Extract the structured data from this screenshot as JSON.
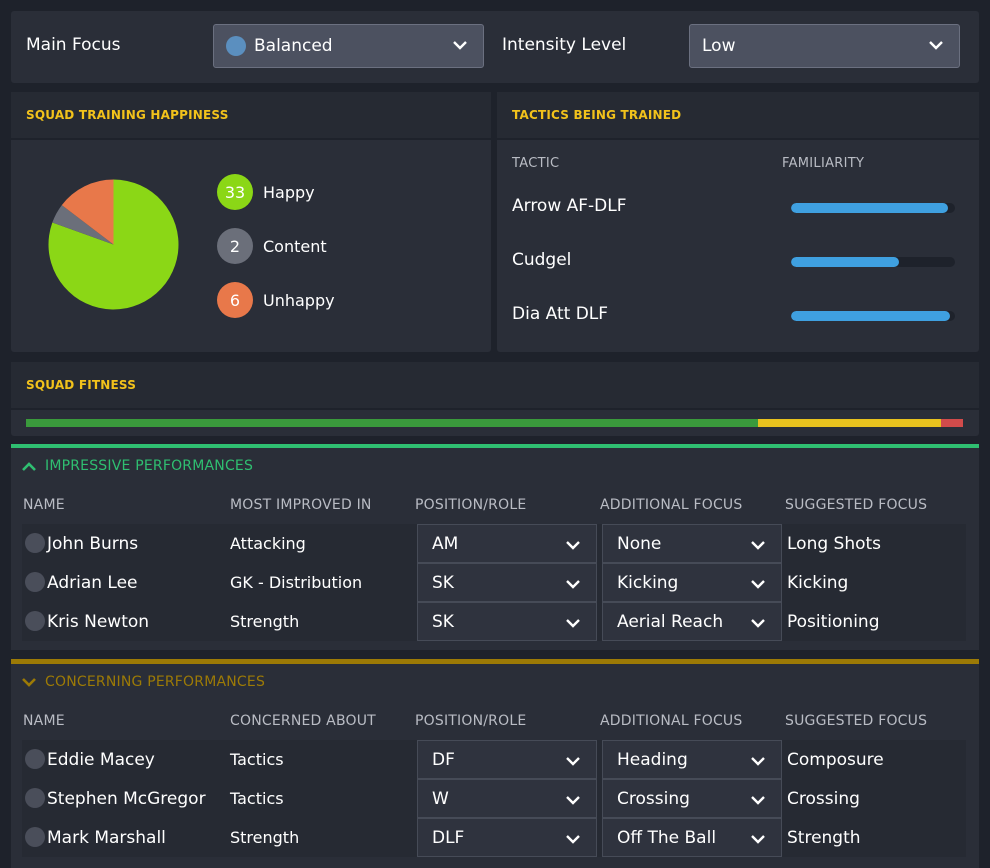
{
  "top": {
    "main_focus_label": "Main Focus",
    "main_focus_value": "Balanced",
    "intensity_label": "Intensity Level",
    "intensity_value": "Low"
  },
  "happiness": {
    "title": "SQUAD TRAINING HAPPINESS",
    "items": [
      {
        "count": "33",
        "label": "Happy",
        "color": "#8bd716"
      },
      {
        "count": "2",
        "label": "Content",
        "color": "#6b6f7a"
      },
      {
        "count": "6",
        "label": "Unhappy",
        "color": "#e8784a"
      }
    ]
  },
  "tactics": {
    "title": "TACTICS BEING TRAINED",
    "col_tactic": "TACTIC",
    "col_familiarity": "FAMILIARITY",
    "rows": [
      {
        "name": "Arrow AF-DLF",
        "familiarity": 0.96
      },
      {
        "name": "Cudgel",
        "familiarity": 0.66
      },
      {
        "name": "Dia Att DLF",
        "familiarity": 0.97
      }
    ]
  },
  "fitness": {
    "title": "SQUAD FITNESS",
    "segments": [
      {
        "fraction": 0.781,
        "color": "#3a9a3c"
      },
      {
        "fraction": 0.195,
        "color": "#e8c21e"
      },
      {
        "fraction": 0.024,
        "color": "#d14b4b"
      }
    ]
  },
  "impressive": {
    "title": "IMPRESSIVE PERFORMANCES",
    "color": "#2fbf71",
    "headers": [
      "NAME",
      "MOST IMPROVED IN",
      "POSITION/ROLE",
      "ADDITIONAL FOCUS",
      "SUGGESTED FOCUS"
    ],
    "rows": [
      {
        "name": "John Burns",
        "area": "Attacking",
        "position": "AM",
        "additional": "None",
        "suggested": "Long Shots"
      },
      {
        "name": "Adrian Lee",
        "area": "GK - Distribution",
        "position": "SK",
        "additional": "Kicking",
        "suggested": "Kicking"
      },
      {
        "name": "Kris Newton",
        "area": "Strength",
        "position": "SK",
        "additional": "Aerial Reach",
        "suggested": "Positioning"
      }
    ]
  },
  "concerning": {
    "title": "CONCERNING PERFORMANCES",
    "color": "#9c7a06",
    "headers": [
      "NAME",
      "CONCERNED ABOUT",
      "POSITION/ROLE",
      "ADDITIONAL FOCUS",
      "SUGGESTED FOCUS"
    ],
    "rows": [
      {
        "name": "Eddie Macey",
        "area": "Tactics",
        "position": "DF",
        "additional": "Heading",
        "suggested": "Composure"
      },
      {
        "name": "Stephen McGregor",
        "area": "Tactics",
        "position": "W",
        "additional": "Crossing",
        "suggested": "Crossing"
      },
      {
        "name": "Mark Marshall",
        "area": "Strength",
        "position": "DLF",
        "additional": "Off The Ball",
        "suggested": "Strength"
      }
    ]
  }
}
